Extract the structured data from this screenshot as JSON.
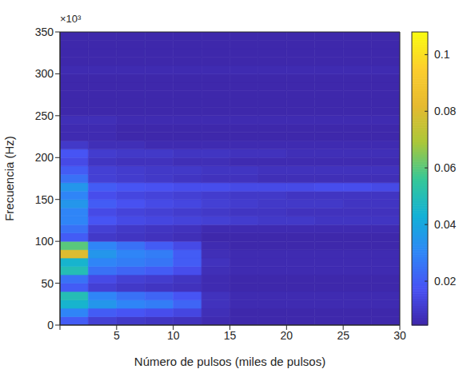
{
  "chart_data": {
    "type": "heatmap",
    "x_label": "Número de pulsos (miles de pulsos)",
    "y_label": "Frecuencia (Hz)",
    "annotation": "×10³",
    "xlim": [
      0,
      30
    ],
    "xticks": [
      0,
      5,
      10,
      15,
      20,
      25,
      30
    ],
    "ylim": [
      0,
      350000
    ],
    "yticks": [
      {
        "value": 0,
        "label": "0"
      },
      {
        "value": 50000,
        "label": "50"
      },
      {
        "value": 100000,
        "label": "100"
      },
      {
        "value": 150000,
        "label": "150"
      },
      {
        "value": 200000,
        "label": "200"
      },
      {
        "value": 250000,
        "label": "250"
      },
      {
        "value": 300000,
        "label": "300"
      },
      {
        "value": 350000,
        "label": "350"
      }
    ],
    "x_edges": [
      0,
      2.5,
      5,
      7.5,
      10,
      12.5,
      15,
      17.5,
      20,
      22.5,
      25,
      27.5,
      30
    ],
    "y_edges": [
      0,
      10000,
      20000,
      30000,
      40000,
      50000,
      60000,
      70000,
      80000,
      90000,
      100000,
      110000,
      120000,
      130000,
      140000,
      150000,
      160000,
      170000,
      180000,
      190000,
      200000,
      210000,
      220000,
      230000,
      240000,
      250000,
      260000,
      270000,
      280000,
      290000,
      300000,
      310000,
      320000,
      330000,
      340000,
      350000
    ],
    "cells": [
      [
        0.02,
        0.012,
        0.01,
        0.009,
        0.008,
        0.006,
        0.005,
        0.005,
        0.005,
        0.005,
        0.005,
        0.005
      ],
      [
        0.03,
        0.02,
        0.018,
        0.016,
        0.014,
        0.007,
        0.005,
        0.005,
        0.005,
        0.005,
        0.005,
        0.005
      ],
      [
        0.045,
        0.035,
        0.03,
        0.028,
        0.022,
        0.008,
        0.006,
        0.006,
        0.006,
        0.006,
        0.006,
        0.006
      ],
      [
        0.05,
        0.03,
        0.025,
        0.022,
        0.018,
        0.008,
        0.006,
        0.006,
        0.006,
        0.006,
        0.006,
        0.006
      ],
      [
        0.02,
        0.012,
        0.01,
        0.009,
        0.008,
        0.006,
        0.005,
        0.005,
        0.005,
        0.005,
        0.005,
        0.005
      ],
      [
        0.025,
        0.015,
        0.012,
        0.011,
        0.009,
        0.006,
        0.005,
        0.005,
        0.005,
        0.005,
        0.005,
        0.005
      ],
      [
        0.05,
        0.025,
        0.022,
        0.02,
        0.016,
        0.007,
        0.006,
        0.006,
        0.006,
        0.006,
        0.006,
        0.006
      ],
      [
        0.045,
        0.03,
        0.028,
        0.026,
        0.02,
        0.008,
        0.006,
        0.006,
        0.006,
        0.006,
        0.006,
        0.006
      ],
      [
        0.08,
        0.035,
        0.03,
        0.028,
        0.02,
        0.007,
        0.006,
        0.006,
        0.006,
        0.006,
        0.006,
        0.006
      ],
      [
        0.06,
        0.03,
        0.025,
        0.02,
        0.015,
        0.006,
        0.005,
        0.005,
        0.005,
        0.005,
        0.005,
        0.005
      ],
      [
        0.02,
        0.01,
        0.009,
        0.008,
        0.007,
        0.005,
        0.005,
        0.005,
        0.005,
        0.005,
        0.005,
        0.005
      ],
      [
        0.025,
        0.012,
        0.01,
        0.009,
        0.008,
        0.006,
        0.006,
        0.006,
        0.006,
        0.006,
        0.006,
        0.006
      ],
      [
        0.03,
        0.018,
        0.015,
        0.014,
        0.013,
        0.012,
        0.011,
        0.01,
        0.01,
        0.009,
        0.009,
        0.009
      ],
      [
        0.03,
        0.015,
        0.013,
        0.012,
        0.011,
        0.01,
        0.009,
        0.009,
        0.008,
        0.008,
        0.008,
        0.008
      ],
      [
        0.035,
        0.02,
        0.017,
        0.015,
        0.014,
        0.012,
        0.011,
        0.01,
        0.01,
        0.01,
        0.009,
        0.009
      ],
      [
        0.03,
        0.016,
        0.014,
        0.013,
        0.012,
        0.011,
        0.01,
        0.01,
        0.009,
        0.009,
        0.009,
        0.009
      ],
      [
        0.035,
        0.02,
        0.018,
        0.017,
        0.016,
        0.016,
        0.015,
        0.015,
        0.015,
        0.016,
        0.016,
        0.015
      ],
      [
        0.025,
        0.012,
        0.011,
        0.01,
        0.009,
        0.008,
        0.008,
        0.007,
        0.007,
        0.007,
        0.007,
        0.007
      ],
      [
        0.02,
        0.012,
        0.011,
        0.01,
        0.01,
        0.009,
        0.009,
        0.008,
        0.008,
        0.008,
        0.008,
        0.008
      ],
      [
        0.015,
        0.009,
        0.008,
        0.008,
        0.007,
        0.007,
        0.006,
        0.006,
        0.006,
        0.006,
        0.006,
        0.006
      ],
      [
        0.018,
        0.011,
        0.01,
        0.01,
        0.009,
        0.009,
        0.008,
        0.008,
        0.007,
        0.007,
        0.007,
        0.007
      ],
      [
        0.01,
        0.007,
        0.007,
        0.006,
        0.006,
        0.006,
        0.006,
        0.006,
        0.006,
        0.006,
        0.006,
        0.006
      ],
      [
        0.006,
        0.006,
        0.005,
        0.005,
        0.005,
        0.005,
        0.005,
        0.005,
        0.005,
        0.005,
        0.005,
        0.005
      ],
      [
        0.006,
        0.006,
        0.005,
        0.005,
        0.005,
        0.005,
        0.005,
        0.005,
        0.005,
        0.005,
        0.005,
        0.005
      ],
      [
        0.007,
        0.007,
        0.006,
        0.006,
        0.006,
        0.006,
        0.006,
        0.006,
        0.006,
        0.006,
        0.006,
        0.006
      ],
      [
        0.005,
        0.005,
        0.005,
        0.005,
        0.005,
        0.005,
        0.005,
        0.005,
        0.005,
        0.005,
        0.005,
        0.005
      ],
      [
        0.005,
        0.005,
        0.005,
        0.005,
        0.005,
        0.005,
        0.005,
        0.005,
        0.005,
        0.005,
        0.005,
        0.005
      ],
      [
        0.005,
        0.005,
        0.005,
        0.005,
        0.005,
        0.005,
        0.005,
        0.005,
        0.005,
        0.005,
        0.005,
        0.005
      ],
      [
        0.005,
        0.005,
        0.005,
        0.005,
        0.005,
        0.005,
        0.005,
        0.005,
        0.005,
        0.005,
        0.005,
        0.005
      ],
      [
        0.005,
        0.005,
        0.005,
        0.005,
        0.005,
        0.005,
        0.005,
        0.005,
        0.005,
        0.005,
        0.005,
        0.005
      ],
      [
        0.006,
        0.006,
        0.006,
        0.006,
        0.006,
        0.006,
        0.006,
        0.006,
        0.006,
        0.006,
        0.006,
        0.006
      ],
      [
        0.005,
        0.005,
        0.005,
        0.005,
        0.005,
        0.005,
        0.005,
        0.005,
        0.005,
        0.005,
        0.005,
        0.005
      ],
      [
        0.005,
        0.005,
        0.005,
        0.005,
        0.005,
        0.005,
        0.005,
        0.005,
        0.005,
        0.005,
        0.005,
        0.005
      ],
      [
        0.005,
        0.005,
        0.005,
        0.005,
        0.005,
        0.005,
        0.005,
        0.005,
        0.005,
        0.005,
        0.005,
        0.005
      ],
      [
        0.005,
        0.005,
        0.005,
        0.005,
        0.005,
        0.005,
        0.005,
        0.005,
        0.005,
        0.005,
        0.005,
        0.005
      ]
    ],
    "colorbar": {
      "range": [
        0.0045,
        0.108
      ],
      "ticks": [
        0.02,
        0.04,
        0.06,
        0.08,
        0.1
      ]
    }
  }
}
